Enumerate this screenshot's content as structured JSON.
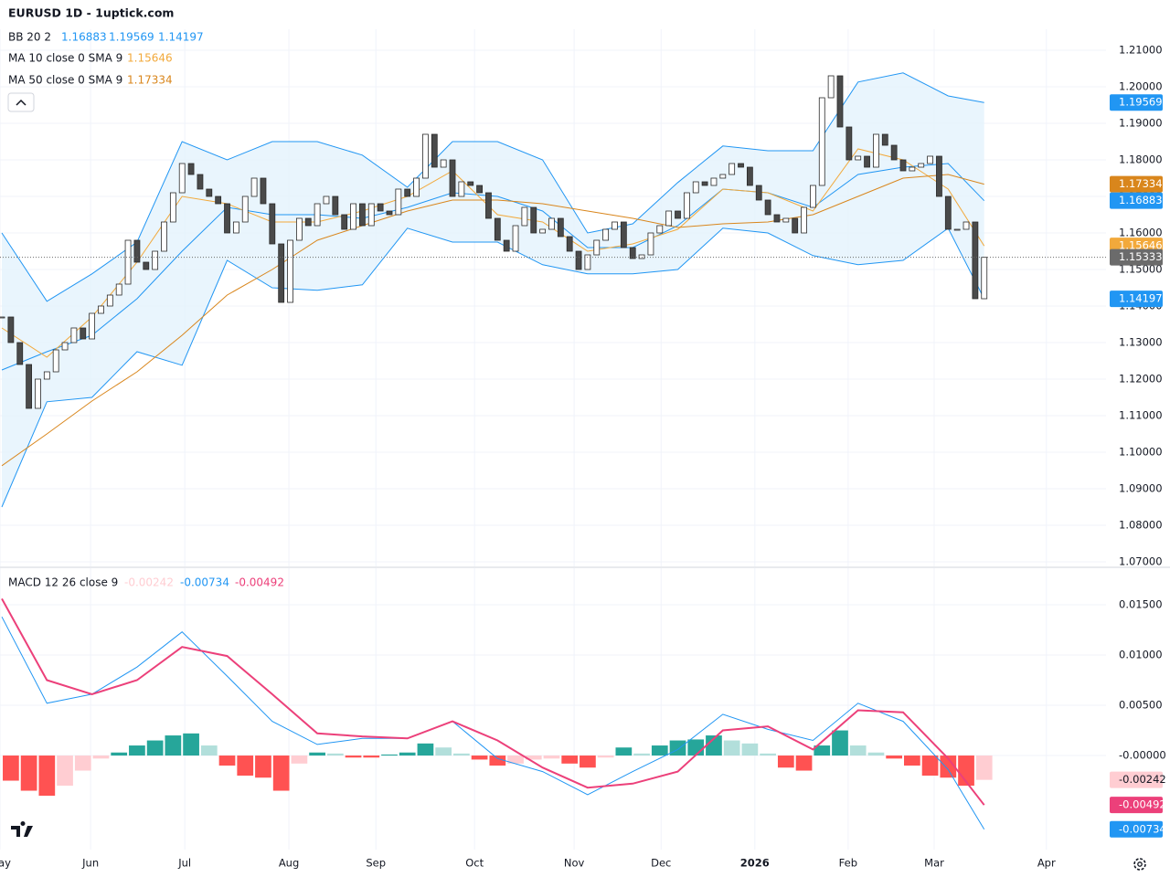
{
  "header": {
    "title": "EURUSD 1D - 1uptick.com"
  },
  "chart_data": [
    {
      "type": "candlestick",
      "x": [
        0,
        2,
        4,
        6,
        8,
        10,
        12,
        14,
        16,
        18,
        20,
        22,
        24,
        26,
        28,
        30,
        32,
        34,
        36,
        38,
        40,
        42,
        44,
        46,
        48,
        50,
        52,
        54,
        56,
        58,
        60,
        62,
        64,
        66,
        68,
        70,
        72,
        74,
        76,
        78,
        80,
        82,
        84,
        86,
        88,
        90,
        92,
        94,
        96,
        98,
        100,
        102,
        104,
        106,
        108,
        110,
        112,
        114,
        116,
        118,
        120,
        122,
        124,
        126,
        128,
        130,
        132,
        134,
        136,
        138,
        140,
        142,
        144,
        146,
        148,
        150,
        152,
        154,
        156,
        158,
        160,
        162,
        164,
        166,
        168,
        170,
        172,
        174,
        176,
        178,
        180,
        182,
        184,
        186,
        188,
        190,
        192,
        194,
        196,
        198,
        200,
        202,
        204,
        206,
        208,
        210,
        212,
        214,
        216,
        218
      ],
      "close": [
        1.137,
        1.13,
        1.124,
        1.112,
        1.12,
        1.122,
        1.128,
        1.13,
        1.134,
        1.131,
        1.138,
        1.14,
        1.143,
        1.146,
        1.158,
        1.152,
        1.15,
        1.155,
        1.163,
        1.171,
        1.179,
        1.176,
        1.172,
        1.17,
        1.168,
        1.16,
        1.163,
        1.17,
        1.175,
        1.168,
        1.157,
        1.141,
        1.158,
        1.164,
        1.162,
        1.168,
        1.17,
        1.165,
        1.161,
        1.168,
        1.162,
        1.168,
        1.166,
        1.165,
        1.172,
        1.17,
        1.175,
        1.187,
        1.178,
        1.18,
        1.17,
        1.174,
        1.173,
        1.171,
        1.164,
        1.158,
        1.155,
        1.162,
        1.167,
        1.16,
        1.161,
        1.164,
        1.159,
        1.155,
        1.15,
        1.154,
        1.158,
        1.161,
        1.163,
        1.156,
        1.153,
        1.154,
        1.16,
        1.162,
        1.166,
        1.164,
        1.171,
        1.174,
        1.173,
        1.175,
        1.176,
        1.179,
        1.178,
        1.173,
        1.169,
        1.165,
        1.163,
        1.164,
        1.16,
        1.167,
        1.173,
        1.197,
        1.203,
        1.189,
        1.18,
        1.181,
        1.178,
        1.187,
        1.184,
        1.18,
        1.177,
        1.178,
        1.179,
        1.181,
        1.17,
        1.161,
        1.161,
        1.163,
        1.142,
        1.15333
      ],
      "colors": {
        "up": "#ffffff",
        "down": "#4a4a4a",
        "outline": "#2a2a2a",
        "last": "#6b6b6b"
      },
      "xlim": [
        -0.41,
        245.03
      ],
      "ylim": [
        1.06875,
        1.21575
      ],
      "yticks": [
        {
          "value": 1.21,
          "label": "1.21000"
        },
        {
          "value": 1.2,
          "label": "1.20000"
        },
        {
          "value": 1.19,
          "label": "1.19000"
        },
        {
          "value": 1.18,
          "label": "1.18000"
        },
        {
          "value": 1.17,
          "label": "1.17000"
        },
        {
          "value": 1.16,
          "label": "1.16000"
        },
        {
          "value": 1.15,
          "label": "1.15000"
        },
        {
          "value": 1.14,
          "label": "1.14000"
        },
        {
          "value": 1.13,
          "label": "1.13000"
        },
        {
          "value": 1.12,
          "label": "1.12000"
        },
        {
          "value": 1.11,
          "label": "1.11000"
        },
        {
          "value": 1.1,
          "label": "1.10000"
        },
        {
          "value": 1.09,
          "label": "1.09000"
        },
        {
          "value": 1.08,
          "label": "1.08000"
        },
        {
          "value": 1.07,
          "label": "1.07000"
        }
      ],
      "xticks": [
        {
          "value": -0.41,
          "label": "May"
        },
        {
          "value": 19.7,
          "label": "Jun"
        },
        {
          "value": 40.6,
          "label": "Jul"
        },
        {
          "value": 63.7,
          "label": "Aug"
        },
        {
          "value": 83.0,
          "label": "Sep"
        },
        {
          "value": 104.9,
          "label": "Oct"
        },
        {
          "value": 127.0,
          "label": "Nov"
        },
        {
          "value": 146.3,
          "label": "Dec"
        },
        {
          "value": 167.1,
          "label": "2026"
        },
        {
          "value": 187.8,
          "label": "Feb"
        },
        {
          "value": 206.9,
          "label": "Mar"
        },
        {
          "value": 231.8,
          "label": "Apr"
        }
      ],
      "grid": true,
      "indicators": {
        "x": [
          0,
          10,
          20,
          30,
          40,
          50,
          60,
          70,
          80,
          90,
          100,
          110,
          120,
          130,
          140,
          150,
          160,
          170,
          180,
          190,
          200,
          210,
          218
        ],
        "bb": {
          "label": "BB 20 2",
          "color": "#2196f3",
          "fill": "#e3f2fd",
          "basis": [
            1.1225,
            1.1275,
            1.132,
            1.142,
            1.155,
            1.167,
            1.165,
            1.165,
            1.164,
            1.167,
            1.171,
            1.17,
            1.166,
            1.156,
            1.156,
            1.162,
            1.172,
            1.171,
            1.167,
            1.176,
            1.178,
            1.179,
            1.16883
          ],
          "upper": [
            1.16,
            1.1413,
            1.1488,
            1.1575,
            1.185,
            1.18,
            1.185,
            1.185,
            1.1813,
            1.1725,
            1.185,
            1.185,
            1.18,
            1.16,
            1.1625,
            1.1738,
            1.1838,
            1.1825,
            1.1825,
            1.2013,
            1.2038,
            1.1975,
            1.19569
          ],
          "lower": [
            1.085,
            1.1138,
            1.115,
            1.1275,
            1.1238,
            1.1525,
            1.145,
            1.1443,
            1.1458,
            1.1613,
            1.1575,
            1.1575,
            1.1513,
            1.1488,
            1.1488,
            1.15,
            1.1613,
            1.16,
            1.1538,
            1.1513,
            1.1525,
            1.1613,
            1.14197
          ]
        },
        "ma10": {
          "label": "MA 10 close 0 SMA 9",
          "color": "#f2a93b",
          "values": [
            1.134,
            1.126,
            1.137,
            1.152,
            1.17,
            1.168,
            1.163,
            1.163,
            1.166,
            1.17,
            1.177,
            1.165,
            1.163,
            1.155,
            1.157,
            1.161,
            1.172,
            1.171,
            1.166,
            1.183,
            1.18,
            1.172,
            1.15646
          ]
        },
        "ma50": {
          "label": "MA 50 close 0 SMA 9",
          "color": "#d9861c",
          "values": [
            1.0963,
            1.105,
            1.114,
            1.122,
            1.132,
            1.143,
            1.15,
            1.158,
            1.162,
            1.166,
            1.169,
            1.169,
            1.168,
            1.166,
            1.164,
            1.1615,
            1.1625,
            1.163,
            1.165,
            1.17,
            1.175,
            1.176,
            1.17334
          ]
        }
      }
    },
    {
      "type": "macd",
      "label": "MACD 12 26 close 9",
      "x": [
        0,
        10,
        20,
        30,
        40,
        50,
        60,
        70,
        80,
        90,
        100,
        110,
        120,
        130,
        140,
        150,
        160,
        170,
        180,
        190,
        200,
        210,
        218
      ],
      "macd": [
        0.0138,
        0.0052,
        0.0061,
        0.0088,
        0.0123,
        0.0079,
        0.0034,
        0.0011,
        0.0017,
        0.0017,
        0.0034,
        -0.0003,
        -0.0016,
        -0.0039,
        -0.0016,
        0.0006,
        0.0041,
        0.0026,
        0.0015,
        0.0052,
        0.0034,
        -0.0014,
        -0.00734
      ],
      "signal": [
        0.0156,
        0.0075,
        0.0061,
        0.0075,
        0.0108,
        0.0099,
        0.0061,
        0.0022,
        0.0019,
        0.0017,
        0.0034,
        0.0015,
        -0.0012,
        -0.0032,
        -0.0028,
        -0.0016,
        0.0025,
        0.0029,
        0.0006,
        0.0045,
        0.0043,
        -0.0003,
        -0.00492
      ],
      "macd_color": "#2196f3",
      "signal_color": "#ec407a",
      "hist_x": [
        2,
        6,
        10,
        14,
        18,
        22,
        26,
        30,
        34,
        38,
        42,
        46,
        50,
        54,
        58,
        62,
        66,
        70,
        74,
        78,
        82,
        86,
        90,
        94,
        98,
        102,
        106,
        110,
        114,
        118,
        122,
        126,
        130,
        134,
        138,
        142,
        146,
        150,
        154,
        158,
        162,
        166,
        170,
        174,
        178,
        182,
        186,
        190,
        194,
        198,
        202,
        206,
        210,
        214,
        218
      ],
      "histogram": [
        -0.0025,
        -0.0035,
        -0.004,
        -0.003,
        -0.0015,
        -0.0003,
        0.0003,
        0.001,
        0.0015,
        0.002,
        0.0022,
        0.001,
        -0.001,
        -0.002,
        -0.0022,
        -0.0035,
        -0.0008,
        0.0003,
        0.0002,
        -0.0002,
        -0.0002,
        0.0001,
        0.0003,
        0.0012,
        0.0008,
        0.0002,
        -0.0004,
        -0.001,
        -0.0008,
        -0.0004,
        -0.0003,
        -0.0008,
        -0.0012,
        -0.0002,
        0.0008,
        0.0002,
        0.001,
        0.0015,
        0.0016,
        0.002,
        0.0015,
        0.0012,
        0.0002,
        -0.0012,
        -0.0015,
        0.001,
        0.0025,
        0.001,
        0.0003,
        -0.0003,
        -0.001,
        -0.002,
        -0.0022,
        -0.003,
        -0.00242
      ],
      "hist_colors": {
        "pos_up": "#26a69a",
        "pos_down": "#b2dfdb",
        "neg_down": "#ff5252",
        "neg_up": "#ffcdd2"
      },
      "ylim": [
        -0.00936,
        0.01864
      ],
      "yticks": [
        {
          "value": 0.015,
          "label": "0.01500"
        },
        {
          "value": 0.01,
          "label": "0.01000"
        },
        {
          "value": 0.005,
          "label": "0.00500"
        },
        {
          "value": 0,
          "label": "-0.00000"
        }
      ],
      "grid": true
    }
  ]
}
